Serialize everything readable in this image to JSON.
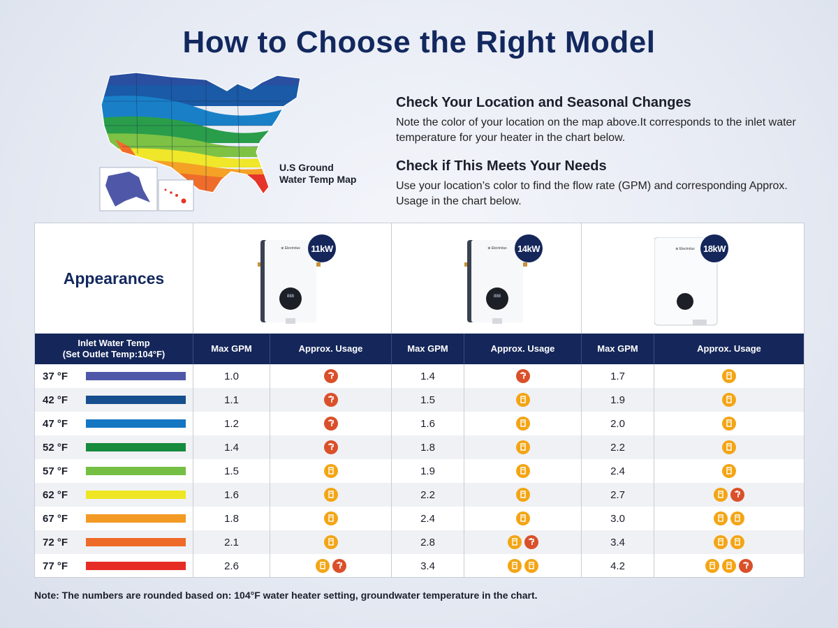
{
  "title": "How to Choose the Right Model",
  "map": {
    "caption_line1": "U.S Ground",
    "caption_line2": "Water Temp Map"
  },
  "info": [
    {
      "heading": "Check Your Location and Seasonal Changes",
      "text": "Note the color of your location on the map above.It corresponds to the inlet water temperature for your heater in the chart below."
    },
    {
      "heading": "Check if This Meets Your Needs",
      "text": "Use your location’s color to find the flow rate (GPM) and corresponding Approx. Usage in the chart below."
    }
  ],
  "table": {
    "appearances_label": "Appearances",
    "models": [
      {
        "label": "11kW",
        "brand": "Electrolux"
      },
      {
        "label": "14kW",
        "brand": "Electrolux"
      },
      {
        "label": "18kW",
        "brand": "Electrolux"
      }
    ],
    "header": {
      "inlet_line1": "Inlet Water Temp",
      "inlet_line2": "(Set Outlet Temp:104°F)",
      "max_gpm": "Max GPM",
      "approx_usage": "Approx. Usage"
    },
    "rows": [
      {
        "temp": "37 °F",
        "color": "#4f58a8",
        "m11": {
          "gpm": "1.0",
          "usage": [
            "faucet"
          ]
        },
        "m14": {
          "gpm": "1.4",
          "usage": [
            "faucet"
          ]
        },
        "m18": {
          "gpm": "1.7",
          "usage": [
            "shower"
          ]
        }
      },
      {
        "temp": "42 °F",
        "color": "#164f8d",
        "m11": {
          "gpm": "1.1",
          "usage": [
            "faucet"
          ]
        },
        "m14": {
          "gpm": "1.5",
          "usage": [
            "shower"
          ]
        },
        "m18": {
          "gpm": "1.9",
          "usage": [
            "shower"
          ]
        }
      },
      {
        "temp": "47 °F",
        "color": "#1576c2",
        "m11": {
          "gpm": "1.2",
          "usage": [
            "faucet"
          ]
        },
        "m14": {
          "gpm": "1.6",
          "usage": [
            "shower"
          ]
        },
        "m18": {
          "gpm": "2.0",
          "usage": [
            "shower"
          ]
        }
      },
      {
        "temp": "52 °F",
        "color": "#168a3d",
        "m11": {
          "gpm": "1.4",
          "usage": [
            "faucet"
          ]
        },
        "m14": {
          "gpm": "1.8",
          "usage": [
            "shower"
          ]
        },
        "m18": {
          "gpm": "2.2",
          "usage": [
            "shower"
          ]
        }
      },
      {
        "temp": "57 °F",
        "color": "#74bf44",
        "m11": {
          "gpm": "1.5",
          "usage": [
            "shower"
          ]
        },
        "m14": {
          "gpm": "1.9",
          "usage": [
            "shower"
          ]
        },
        "m18": {
          "gpm": "2.4",
          "usage": [
            "shower"
          ]
        }
      },
      {
        "temp": "62 °F",
        "color": "#eee623",
        "m11": {
          "gpm": "1.6",
          "usage": [
            "shower"
          ]
        },
        "m14": {
          "gpm": "2.2",
          "usage": [
            "shower"
          ]
        },
        "m18": {
          "gpm": "2.7",
          "usage": [
            "shower",
            "faucet"
          ]
        }
      },
      {
        "temp": "67 °F",
        "color": "#f39a24",
        "m11": {
          "gpm": "1.8",
          "usage": [
            "shower"
          ]
        },
        "m14": {
          "gpm": "2.4",
          "usage": [
            "shower"
          ]
        },
        "m18": {
          "gpm": "3.0",
          "usage": [
            "shower",
            "shower"
          ]
        }
      },
      {
        "temp": "72 °F",
        "color": "#ee6a28",
        "m11": {
          "gpm": "2.1",
          "usage": [
            "shower"
          ]
        },
        "m14": {
          "gpm": "2.8",
          "usage": [
            "shower",
            "faucet"
          ]
        },
        "m18": {
          "gpm": "3.4",
          "usage": [
            "shower",
            "shower"
          ]
        }
      },
      {
        "temp": "77 °F",
        "color": "#e52d26",
        "m11": {
          "gpm": "2.6",
          "usage": [
            "shower",
            "faucet"
          ]
        },
        "m14": {
          "gpm": "3.4",
          "usage": [
            "shower",
            "shower"
          ]
        },
        "m18": {
          "gpm": "4.2",
          "usage": [
            "shower",
            "shower",
            "faucet"
          ]
        }
      }
    ]
  },
  "icons": {
    "shower": {
      "name": "shower-icon",
      "color": "#f3a515"
    },
    "faucet": {
      "name": "faucet-icon",
      "color": "#d9502a"
    }
  },
  "note": "Note: The numbers are rounded based on: 104°F water heater setting, groundwater temperature in the chart."
}
